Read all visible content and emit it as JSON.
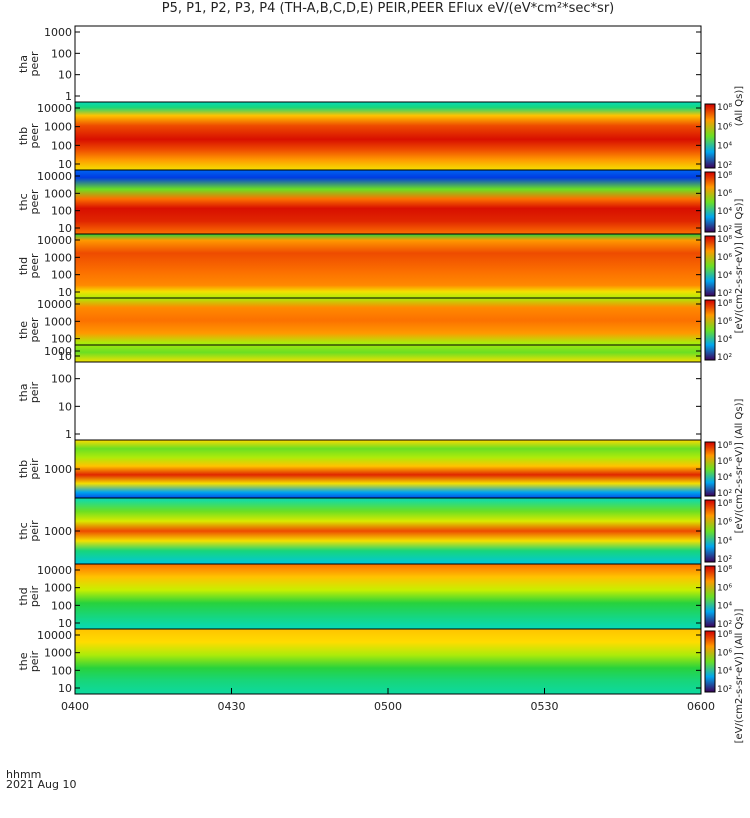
{
  "title": "P5, P1, P2, P3, P4 (TH-A,B,C,D,E) PEIR,PEER EFlux eV/(eV*cm²*sec*sr)",
  "footer": {
    "label": "hhmm",
    "date": "2021 Aug 10"
  },
  "time_ticks": [
    "0400",
    "0430",
    "0500",
    "0530",
    "0600"
  ],
  "colorbar_ticks": [
    "10²",
    "10⁴",
    "10⁶",
    "10⁸"
  ],
  "colorbar_labels": [
    {
      "text": "(All Qs)]"
    },
    {
      "text": "[eV/(cm2-s-sr-eV)] (All Qs)]"
    },
    {
      "text": "[eV/(cm2-s-sr-eV)] (All Qs)]"
    },
    {
      "text": "[eV/(cm2-s-sr-eV)] (All Qs)]"
    }
  ],
  "chart_data": [
    {
      "type": "heatmap",
      "probe": "tha",
      "species": "peer",
      "ylabel": "tha\npeer",
      "yticks": [
        "1",
        "10",
        "100",
        "1000"
      ],
      "yscale": "log",
      "empty": true
    },
    {
      "type": "heatmap",
      "probe": "thb",
      "species": "peer",
      "ylabel": "thb\npeer",
      "yticks": [
        "10",
        "100",
        "1000",
        "10000"
      ],
      "yscale": "log",
      "empty": false,
      "colorbar": true
    },
    {
      "type": "heatmap",
      "probe": "thc",
      "species": "peer",
      "ylabel": "thc\npeer",
      "yticks": [
        "10",
        "100",
        "1000",
        "10000"
      ],
      "yscale": "log",
      "empty": false,
      "colorbar": true
    },
    {
      "type": "heatmap",
      "probe": "thd",
      "species": "peer",
      "ylabel": "thd\npeer",
      "yticks": [
        "10",
        "100",
        "1000",
        "10000"
      ],
      "yscale": "log",
      "empty": false,
      "colorbar": true
    },
    {
      "type": "heatmap",
      "probe": "the",
      "species": "peer",
      "ylabel": "the\npeer",
      "yticks": [
        "10",
        "100",
        "1000",
        "10000"
      ],
      "yscale": "log",
      "empty": false,
      "colorbar": true
    },
    {
      "type": "heatmap",
      "probe": "tha",
      "species": "peir",
      "ylabel": "tha\npeir",
      "yticks": [
        "1",
        "10",
        "100",
        "1000"
      ],
      "yscale": "log",
      "empty": true
    },
    {
      "type": "heatmap",
      "probe": "thb",
      "species": "peir",
      "ylabel": "thb\npeir",
      "yticks": [
        "1000"
      ],
      "yscale": "log",
      "empty": false,
      "colorbar": true
    },
    {
      "type": "heatmap",
      "probe": "thc",
      "species": "peir",
      "ylabel": "thc\npeir",
      "yticks": [
        "1000"
      ],
      "yscale": "log",
      "empty": false,
      "colorbar": true
    },
    {
      "type": "heatmap",
      "probe": "thd",
      "species": "peir",
      "ylabel": "thd\npeir",
      "yticks": [
        "10",
        "100",
        "1000",
        "10000"
      ],
      "yscale": "log",
      "empty": false,
      "colorbar": true
    },
    {
      "type": "heatmap",
      "probe": "the",
      "species": "peir",
      "ylabel": "the\npeir",
      "yticks": [
        "10",
        "100",
        "1000",
        "10000"
      ],
      "yscale": "log",
      "empty": false,
      "colorbar": true
    }
  ]
}
